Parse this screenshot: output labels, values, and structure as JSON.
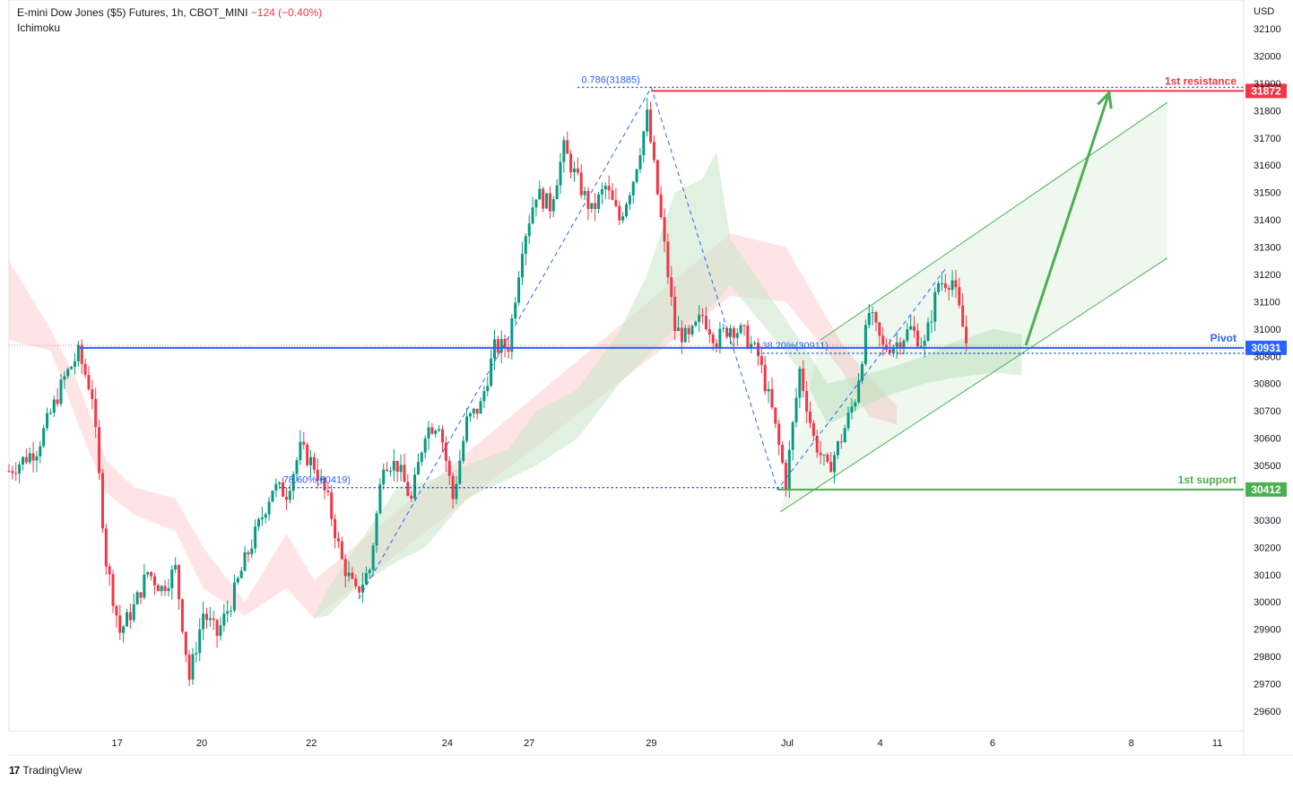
{
  "header": {
    "symbol": "E-mini Dow Jones ($5) Futures, 1h, CBOT_MINI",
    "change": "−124 (−0.40%)",
    "indicator": "Ichimoku"
  },
  "footer": {
    "brand": "TradingView"
  },
  "chart_data": {
    "type": "candlestick",
    "currency": "USD",
    "ylim": [
      29550,
      32200
    ],
    "y_ticks": [
      29600,
      29700,
      29800,
      29900,
      30000,
      30100,
      30200,
      30300,
      30500,
      30600,
      30700,
      30800,
      30900,
      31000,
      31100,
      31200,
      31300,
      31400,
      31500,
      31600,
      31700,
      31800,
      31900,
      32000,
      32100
    ],
    "x_ticks": [
      {
        "label": "17",
        "t": 7.8
      },
      {
        "label": "20",
        "t": 13.9
      },
      {
        "label": "22",
        "t": 21.8
      },
      {
        "label": "24",
        "t": 31.6
      },
      {
        "label": "27",
        "t": 37.5
      },
      {
        "label": "29",
        "t": 46.3
      },
      {
        "label": "Jul",
        "t": 56.1
      },
      {
        "label": "4",
        "t": 62.8
      },
      {
        "label": "6",
        "t": 70.9
      },
      {
        "label": "8",
        "t": 80.9
      },
      {
        "label": "11",
        "t": 87.1
      }
    ],
    "colors": {
      "up": "#089981",
      "down": "#f23645",
      "cloud_bull": "#c8e6c9",
      "cloud_bear": "#ffcdd2",
      "pivot": "#2962ff",
      "support": "#4caf50",
      "resistance": "#f23645"
    },
    "price_path": [
      [
        0,
        30480
      ],
      [
        2,
        30560
      ],
      [
        4,
        30820
      ],
      [
        5,
        30910
      ],
      [
        6,
        30760
      ],
      [
        7,
        30150
      ],
      [
        8,
        29890
      ],
      [
        9,
        29980
      ],
      [
        10,
        30110
      ],
      [
        11,
        30050
      ],
      [
        12,
        30120
      ],
      [
        13,
        29720
      ],
      [
        14,
        29960
      ],
      [
        15,
        29880
      ],
      [
        16,
        30000
      ],
      [
        17,
        30150
      ],
      [
        18,
        30280
      ],
      [
        19,
        30420
      ],
      [
        20,
        30400
      ],
      [
        21,
        30560
      ],
      [
        22,
        30500
      ],
      [
        23,
        30370
      ],
      [
        24,
        30150
      ],
      [
        25,
        30030
      ],
      [
        26,
        30120
      ],
      [
        27,
        30520
      ],
      [
        28,
        30500
      ],
      [
        29,
        30370
      ],
      [
        30,
        30630
      ],
      [
        31,
        30660
      ],
      [
        32,
        30380
      ],
      [
        33,
        30660
      ],
      [
        34,
        30720
      ],
      [
        35,
        30930
      ],
      [
        36,
        30940
      ],
      [
        37,
        31310
      ],
      [
        38,
        31500
      ],
      [
        39,
        31450
      ],
      [
        40,
        31660
      ],
      [
        41,
        31540
      ],
      [
        42,
        31430
      ],
      [
        43,
        31520
      ],
      [
        44,
        31400
      ],
      [
        45,
        31550
      ],
      [
        46,
        31780
      ],
      [
        47,
        31400
      ],
      [
        48,
        31000
      ],
      [
        49,
        30960
      ],
      [
        50,
        31050
      ],
      [
        51,
        30960
      ],
      [
        52,
        31010
      ],
      [
        53,
        30980
      ],
      [
        54,
        30900
      ],
      [
        55,
        30700
      ],
      [
        56,
        30440
      ],
      [
        57,
        30850
      ],
      [
        58,
        30600
      ],
      [
        59,
        30480
      ],
      [
        60,
        30600
      ],
      [
        61,
        30750
      ],
      [
        62,
        31060
      ],
      [
        63,
        30930
      ],
      [
        64,
        30950
      ],
      [
        65,
        31000
      ],
      [
        66,
        30940
      ],
      [
        67,
        31170
      ],
      [
        68,
        31180
      ],
      [
        69,
        30950
      ]
    ],
    "ichimoku_cloud": {
      "bear": [
        [
          0,
          31250,
          30960
        ],
        [
          3,
          31000,
          30920
        ],
        [
          5,
          30800,
          30650
        ],
        [
          7,
          30520,
          30400
        ],
        [
          9,
          30420,
          30320
        ],
        [
          12,
          30380,
          30260
        ],
        [
          14,
          30200,
          30050
        ],
        [
          17,
          30000,
          29950
        ],
        [
          20,
          30250,
          30050
        ],
        [
          22,
          30080,
          29940
        ],
        [
          52,
          31350,
          31120
        ],
        [
          56,
          31300,
          31100
        ],
        [
          60,
          30950,
          30850
        ],
        [
          62,
          30820,
          30680
        ],
        [
          64,
          30720,
          30650
        ]
      ],
      "bull": [
        [
          22,
          29950,
          29940
        ],
        [
          23,
          30050,
          29950
        ],
        [
          25,
          30200,
          30050
        ],
        [
          28,
          30420,
          30150
        ],
        [
          30,
          30440,
          30200
        ],
        [
          33,
          30500,
          30380
        ],
        [
          36,
          30560,
          30450
        ],
        [
          38,
          30700,
          30500
        ],
        [
          41,
          30780,
          30600
        ],
        [
          44,
          30990,
          30800
        ],
        [
          46,
          31200,
          30900
        ],
        [
          48,
          31500,
          31000
        ],
        [
          50,
          31550,
          31050
        ],
        [
          51,
          31650,
          31100
        ],
        [
          52,
          31330,
          31160
        ],
        [
          57,
          30960,
          30850
        ],
        [
          59,
          30800,
          30650
        ],
        [
          63,
          30850,
          30750
        ],
        [
          66,
          30900,
          30800
        ],
        [
          68,
          30950,
          30820
        ],
        [
          71,
          31000,
          30840
        ],
        [
          73,
          30980,
          30830
        ]
      ]
    },
    "zigzag": [
      [
        25.2,
        30010
      ],
      [
        46.3,
        31885
      ],
      [
        55.4,
        30412
      ],
      [
        67.5,
        31220
      ]
    ],
    "channel": {
      "lower": [
        [
          55.6,
          30330
        ],
        [
          83.5,
          31260
        ]
      ],
      "upper": [
        [
          58.5,
          30960
        ],
        [
          83.5,
          31830
        ]
      ]
    },
    "projection_arrow": [
      [
        73.3,
        30940
      ],
      [
        79.3,
        31865
      ]
    ],
    "levels": [
      {
        "name": "1st resistance",
        "price": 31872,
        "color": "#f23645",
        "from": 46.3
      },
      {
        "name": "Pivot",
        "price": 30931,
        "color": "#2962ff",
        "from": 5.1
      },
      {
        "name": "1st support",
        "price": 30412,
        "color": "#4caf50",
        "from": 55.4
      }
    ],
    "fib_labels": [
      {
        "text": "0.786(31885)",
        "t": 41.0,
        "price": 31885,
        "to": 89.0
      },
      {
        "text": "38.20%(30911)",
        "t": 54.0,
        "price": 30911,
        "to": 89.0
      },
      {
        "text": "78.60%(30419)",
        "t": 19.5,
        "price": 30419,
        "to": 56.0
      }
    ],
    "last_price": 30940
  }
}
